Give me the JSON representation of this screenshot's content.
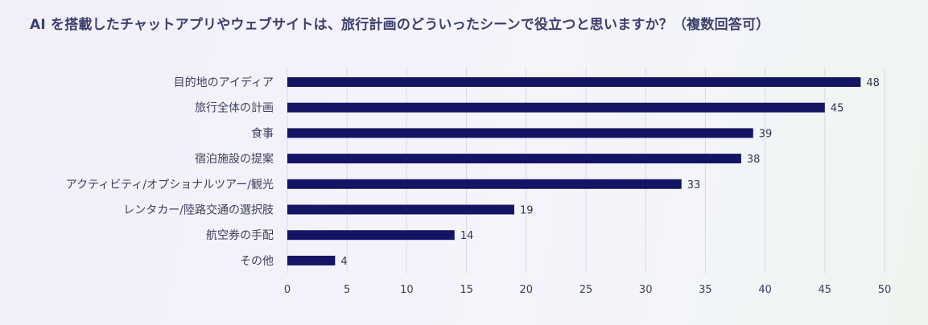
{
  "title": "AI を搭載したチャットアプリやウェブサイトは、旅行計画のどういったシーンで役立つと思いますか？（複数回答可）",
  "chart_data": {
    "type": "bar",
    "orientation": "horizontal",
    "title": "AI を搭載したチャットアプリやウェブサイトは、旅行計画のどういったシーンで役立つと思いますか？（複数回答可）",
    "categories": [
      "目的地のアイディア",
      "旅行全体の計画",
      "食事",
      "宿泊施設の提案",
      "アクティビティ/オプショナルツアー/観光",
      "レンタカー/陸路交通の選択肢",
      "航空券の手配",
      "その他"
    ],
    "values": [
      48,
      45,
      39,
      38,
      33,
      19,
      14,
      4
    ],
    "xlim": [
      0,
      50
    ],
    "xticks": [
      0,
      5,
      10,
      15,
      20,
      25,
      30,
      35,
      40,
      45,
      50
    ],
    "grid": true,
    "bar_color": "#141464"
  }
}
